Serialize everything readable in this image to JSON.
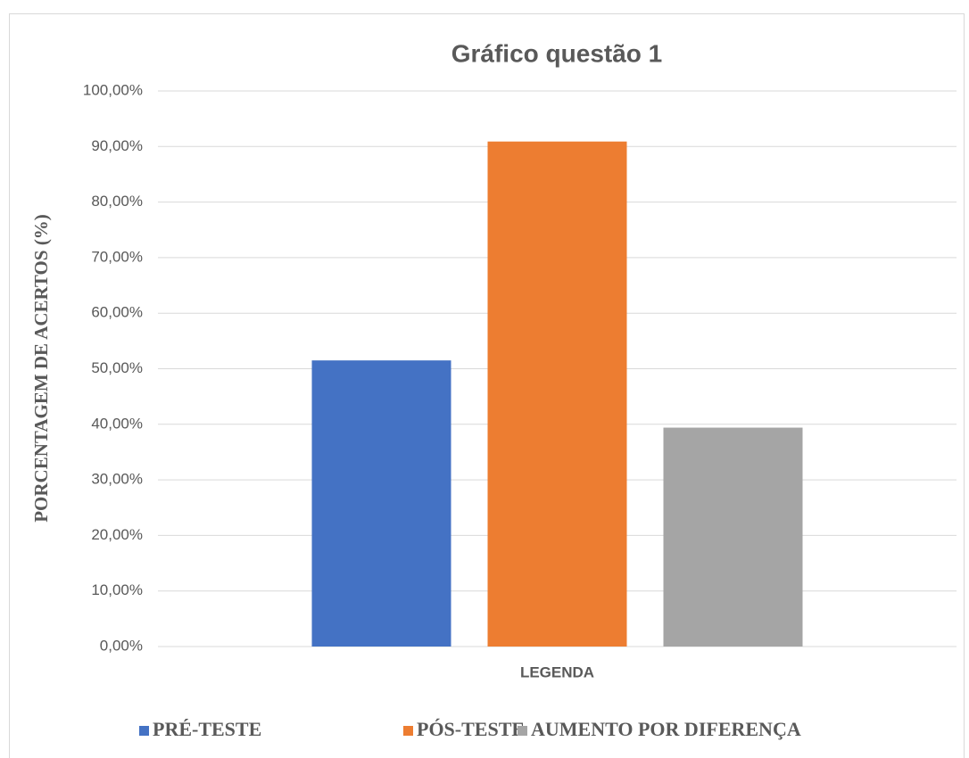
{
  "chart_data": {
    "type": "bar",
    "title": "Gráfico questão 1",
    "ylabel": "PORCENTAGEM DE ACERTOS (%)",
    "categories": [
      "LEGENDA"
    ],
    "series": [
      {
        "name": "PRÉ-TESTE",
        "color": "#4472c4",
        "values": [
          51.5
        ]
      },
      {
        "name": "PÓS-TESTE",
        "color": "#ed7d31",
        "values": [
          90.9
        ]
      },
      {
        "name": "AUMENTO POR DIFERENÇA",
        "color": "#a5a5a5",
        "values": [
          39.4
        ]
      }
    ],
    "ylim": [
      0,
      100
    ],
    "yticks": [
      {
        "value": 0,
        "label": "0,00%"
      },
      {
        "value": 10,
        "label": "10,00%"
      },
      {
        "value": 20,
        "label": "20,00%"
      },
      {
        "value": 30,
        "label": "30,00%"
      },
      {
        "value": 40,
        "label": "40,00%"
      },
      {
        "value": 50,
        "label": "50,00%"
      },
      {
        "value": 60,
        "label": "60,00%"
      },
      {
        "value": 70,
        "label": "70,00%"
      },
      {
        "value": 80,
        "label": "80,00%"
      },
      {
        "value": 90,
        "label": "90,00%"
      },
      {
        "value": 100,
        "label": "100,00%"
      }
    ],
    "grid": true,
    "legend": "bottom"
  }
}
